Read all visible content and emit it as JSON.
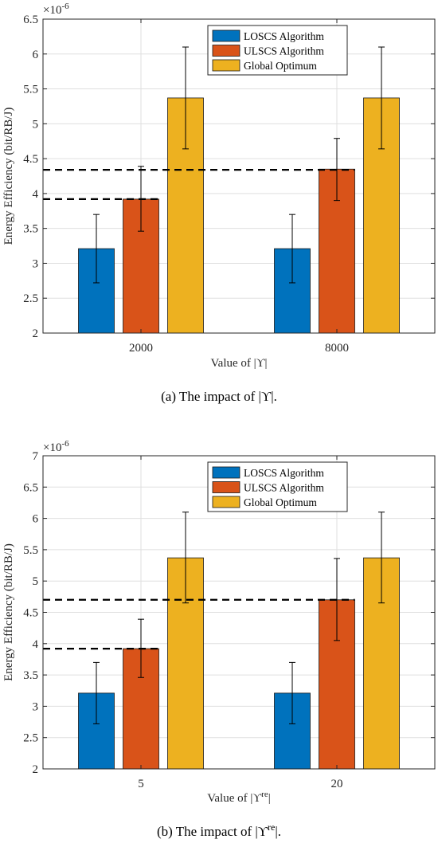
{
  "colors": {
    "loscs": "#0072BD",
    "ulscs": "#D95319",
    "global": "#EDB120",
    "dashed": "#000000",
    "grid": "#dfdfdf"
  },
  "chart_data": [
    {
      "type": "bar",
      "panel_caption": "(a)  The impact of |ϒ|.",
      "exponent": "×10⁻⁶",
      "exponent_base": "×10",
      "exponent_power": "-6",
      "xlabel": "Value of |ϒ|",
      "ylabel": "Energy Efficiency (bit/RB/J)",
      "ylim": [
        2,
        6.5
      ],
      "yticks": [
        2,
        2.5,
        3,
        3.5,
        4,
        4.5,
        5,
        5.5,
        6,
        6.5
      ],
      "ytick_labels": [
        "2",
        "2.5",
        "3",
        "3.5",
        "4",
        "4.5",
        "5",
        "5.5",
        "6",
        "6.5"
      ],
      "categories": [
        "2000",
        "8000"
      ],
      "grid": true,
      "legend_placement": "top-right",
      "series": [
        {
          "name": "LOSCS Algorithm",
          "values": [
            3.21,
            3.21
          ],
          "err_low": [
            2.72,
            2.72
          ],
          "err_high": [
            3.7,
            3.7
          ]
        },
        {
          "name": "ULSCS Algorithm",
          "values": [
            3.92,
            4.35
          ],
          "err_low": [
            3.46,
            3.9
          ],
          "err_high": [
            4.39,
            4.79
          ]
        },
        {
          "name": "Global Optimum",
          "values": [
            5.37,
            5.37
          ],
          "err_low": [
            4.64,
            4.64
          ],
          "err_high": [
            6.1,
            6.1
          ]
        }
      ],
      "reference_lines": [
        3.92,
        4.34
      ]
    },
    {
      "type": "bar",
      "panel_caption": "(b)  The impact of |ϒre|.",
      "exponent": "×10⁻⁶",
      "exponent_base": "×10",
      "exponent_power": "-6",
      "xlabel": "Value of |ϒre|",
      "ylabel": "Energy Efficiency (bit/RB/J)",
      "ylim": [
        2,
        7
      ],
      "yticks": [
        2,
        2.5,
        3,
        3.5,
        4,
        4.5,
        5,
        5.5,
        6,
        6.5,
        7
      ],
      "ytick_labels": [
        "2",
        "2.5",
        "3",
        "3.5",
        "4",
        "4.5",
        "5",
        "5.5",
        "6",
        "6.5",
        "7"
      ],
      "categories": [
        "5",
        "20"
      ],
      "grid": true,
      "legend_placement": "top-right",
      "series": [
        {
          "name": "LOSCS Algorithm",
          "values": [
            3.21,
            3.21
          ],
          "err_low": [
            2.72,
            2.72
          ],
          "err_high": [
            3.7,
            3.7
          ]
        },
        {
          "name": "ULSCS Algorithm",
          "values": [
            3.92,
            4.7
          ],
          "err_low": [
            3.46,
            4.05
          ],
          "err_high": [
            4.39,
            5.36
          ]
        },
        {
          "name": "Global Optimum",
          "values": [
            5.37,
            5.37
          ],
          "err_low": [
            4.65,
            4.65
          ],
          "err_high": [
            6.1,
            6.1
          ]
        }
      ],
      "reference_lines": [
        3.92,
        4.7
      ]
    }
  ]
}
